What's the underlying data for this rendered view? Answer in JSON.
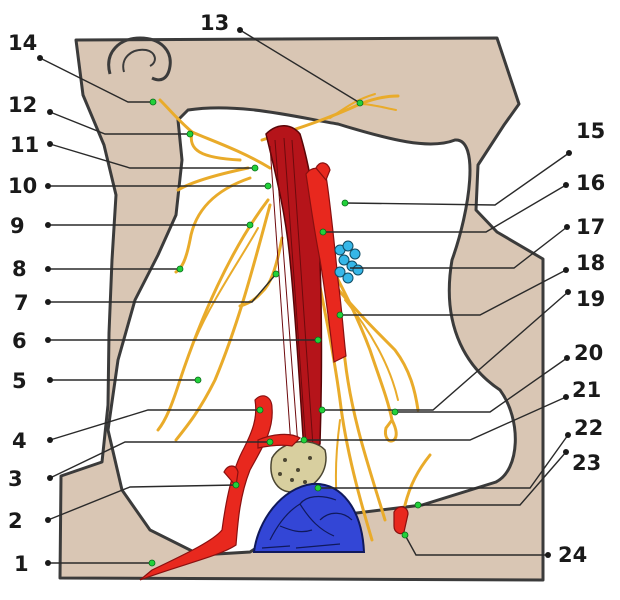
{
  "labels": [
    "1",
    "2",
    "3",
    "4",
    "5",
    "6",
    "7",
    "8",
    "9",
    "10",
    "11",
    "12",
    "13",
    "14",
    "15",
    "16",
    "17",
    "18",
    "19",
    "20",
    "21",
    "22",
    "23",
    "24"
  ],
  "colors": {
    "skin": "#d9c6b4",
    "outline": "#3b3b3b",
    "nerve": "#e9ab2a",
    "artery": "#e8281e",
    "muscle": "#b5141a",
    "gland": "#3346d6",
    "lymph_node": "#36b7e8",
    "tendon": "#d8cf9f",
    "marker": "#22d13a"
  }
}
